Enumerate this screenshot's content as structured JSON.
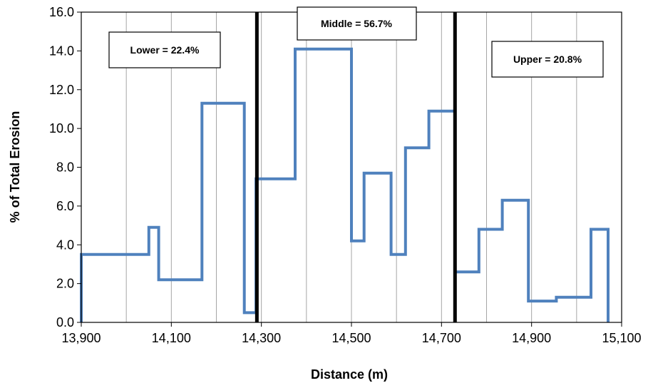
{
  "chart_data": {
    "type": "line",
    "subtype": "step",
    "title": "",
    "xlabel": "Distance (m)",
    "ylabel": "% of Total Erosion",
    "xlim": [
      13900,
      15100
    ],
    "ylim": [
      0,
      16
    ],
    "xticks": [
      13900,
      14100,
      14300,
      14500,
      14700,
      14900,
      15100
    ],
    "xtick_labels": [
      "13,900",
      "14,100",
      "14,300",
      "14,500",
      "14,700",
      "14,900",
      "15,100"
    ],
    "yticks": [
      0,
      2,
      4,
      6,
      8,
      10,
      12,
      14,
      16
    ],
    "ytick_labels": [
      "0.0",
      "2.0",
      "4.0",
      "6.0",
      "8.0",
      "10.0",
      "12.0",
      "14.0",
      "16.0"
    ],
    "grid": "vertical",
    "series_color": "#4F81BD",
    "divider_color": "#000000",
    "series": [
      {
        "points": [
          [
            13900,
            0
          ],
          [
            13900,
            3.5
          ],
          [
            14050,
            3.5
          ],
          [
            14050,
            4.9
          ],
          [
            14072,
            4.9
          ],
          [
            14072,
            2.2
          ],
          [
            14168,
            2.2
          ],
          [
            14168,
            11.3
          ],
          [
            14262,
            11.3
          ],
          [
            14262,
            0.5
          ],
          [
            14288,
            0.5
          ],
          [
            14288,
            7.4
          ],
          [
            14375,
            7.4
          ],
          [
            14375,
            14.1
          ],
          [
            14500,
            14.1
          ],
          [
            14500,
            4.2
          ],
          [
            14528,
            4.2
          ],
          [
            14528,
            7.7
          ],
          [
            14588,
            7.7
          ],
          [
            14588,
            3.5
          ],
          [
            14620,
            3.5
          ],
          [
            14620,
            9.0
          ],
          [
            14672,
            9.0
          ],
          [
            14672,
            10.9
          ],
          [
            14728,
            10.9
          ]
        ]
      },
      {
        "points": [
          [
            14730,
            2.6
          ],
          [
            14783,
            2.6
          ],
          [
            14783,
            4.8
          ],
          [
            14835,
            4.8
          ],
          [
            14835,
            6.3
          ],
          [
            14893,
            6.3
          ],
          [
            14893,
            1.1
          ],
          [
            14955,
            1.1
          ],
          [
            14955,
            1.3
          ],
          [
            15032,
            1.3
          ],
          [
            15032,
            4.8
          ],
          [
            15070,
            4.8
          ],
          [
            15070,
            0
          ]
        ]
      }
    ],
    "dividers": [
      14290,
      14730
    ],
    "annotations": [
      {
        "label": "Lower = 22.4%"
      },
      {
        "label": "Middle = 56.7%"
      },
      {
        "label": "Upper = 20.8%"
      }
    ]
  }
}
